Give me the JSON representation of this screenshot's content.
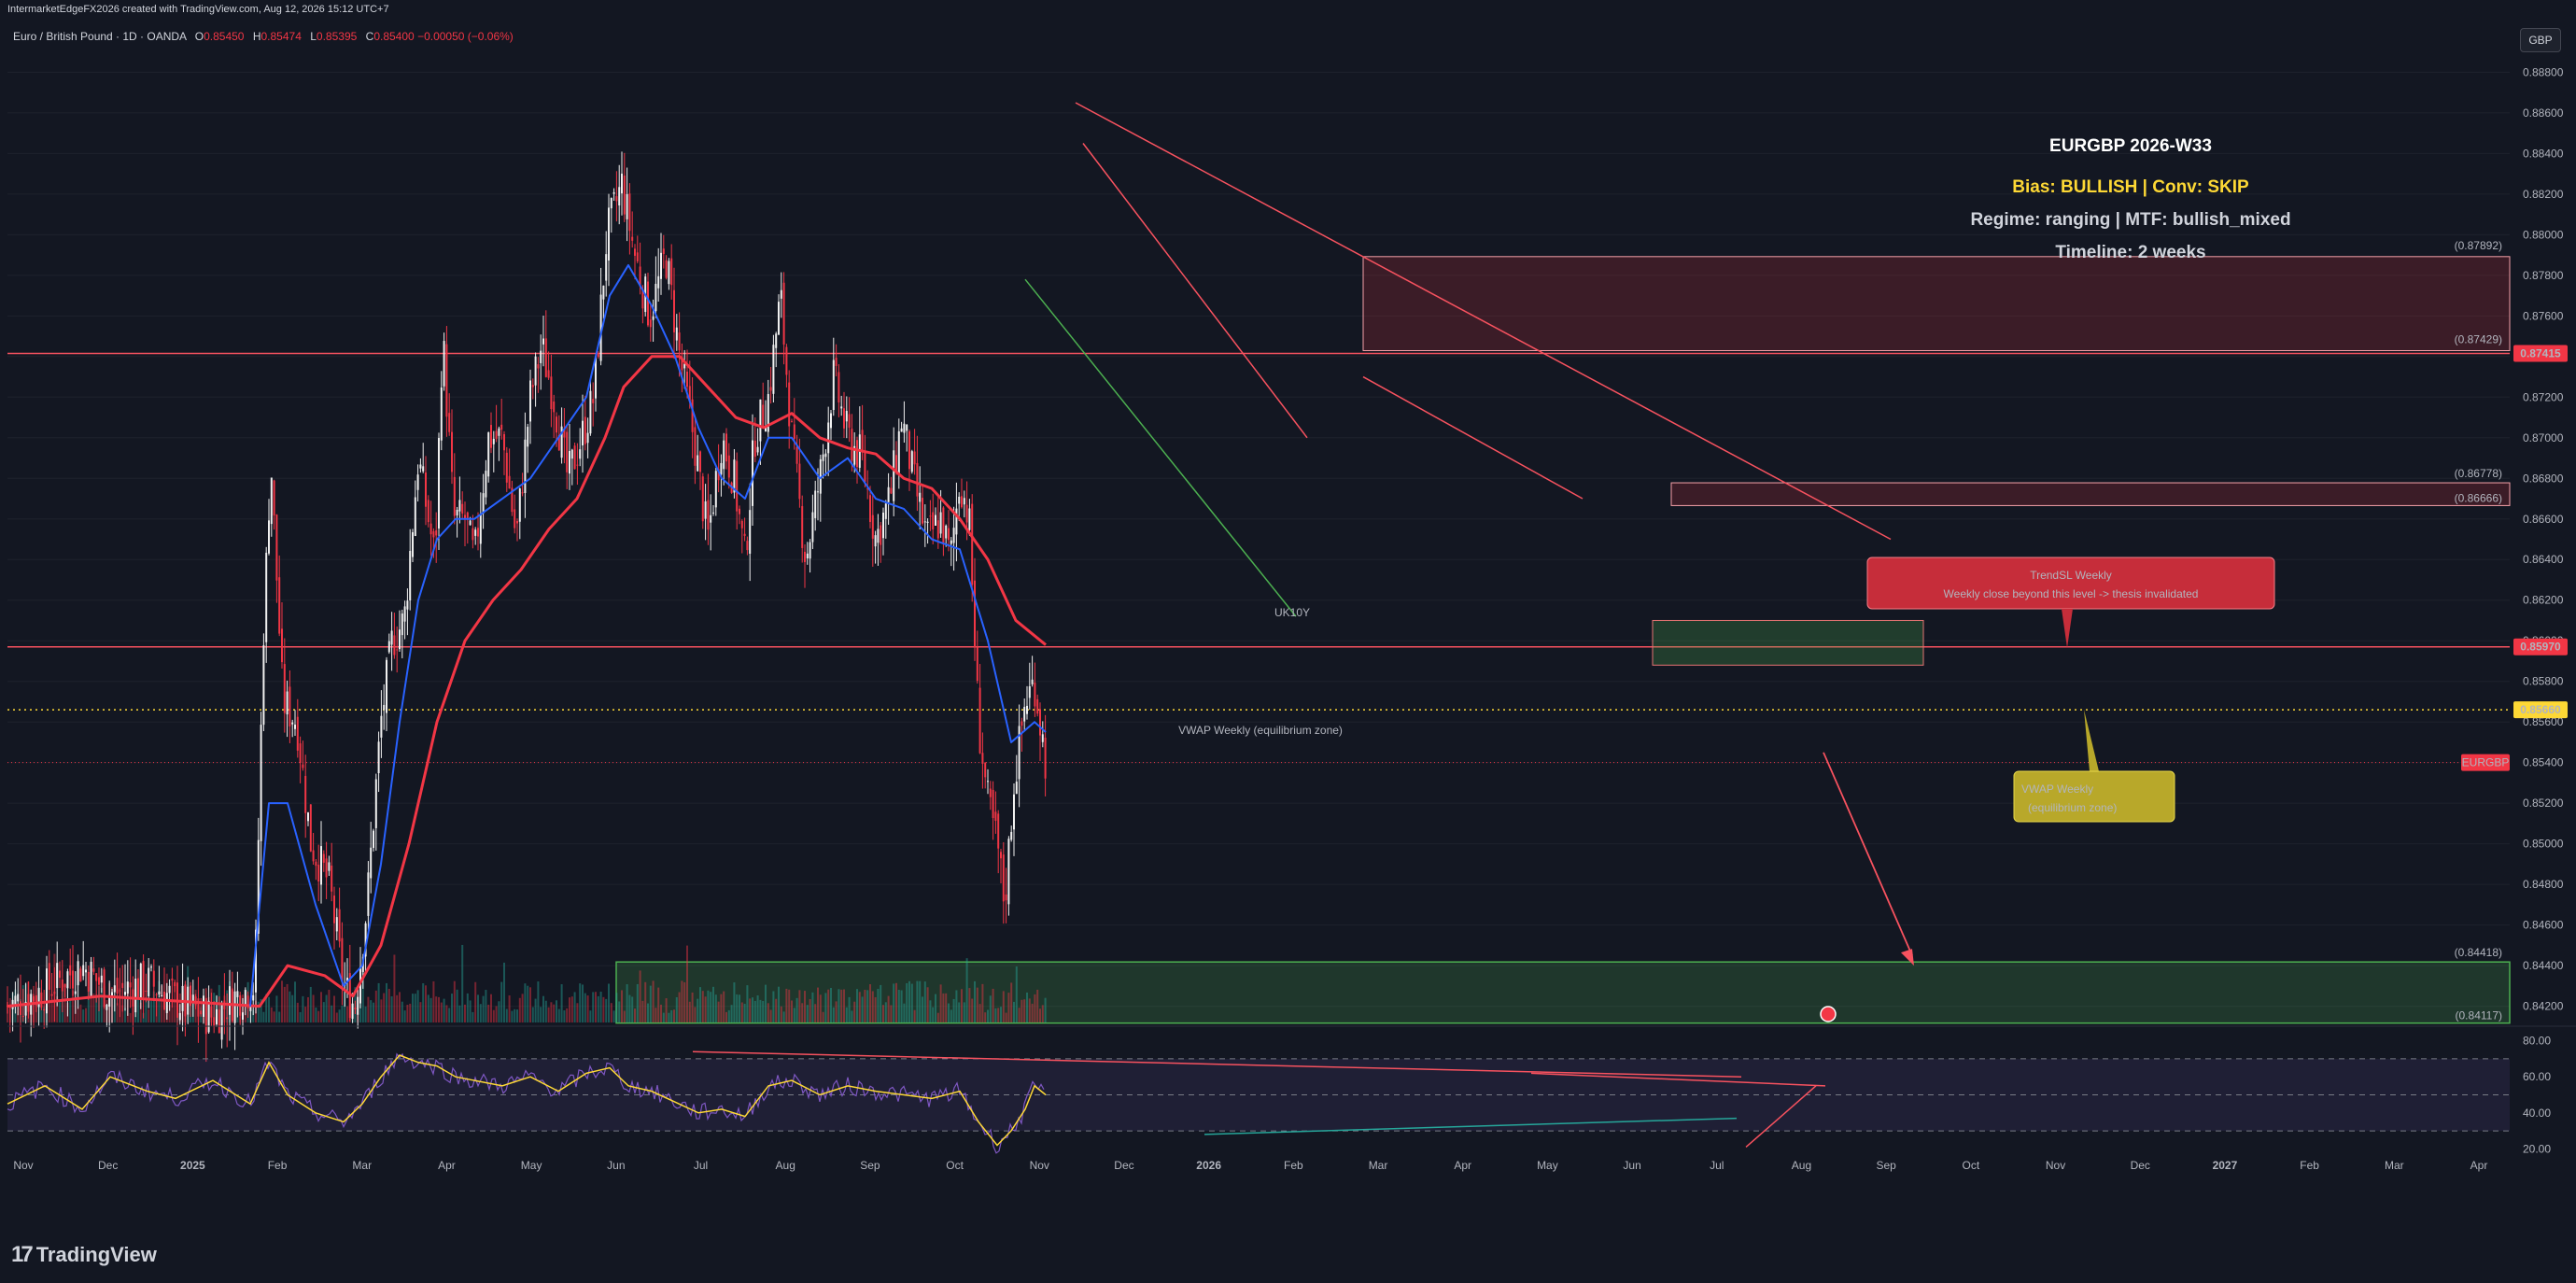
{
  "header": {
    "credit": "IntermarketEdgeFX2026 created with TradingView.com, Aug 12, 2026 15:12 UTC+7",
    "symbol": "Euro / British Pound · 1D · OANDA",
    "ohlc": [
      {
        "label": "O",
        "value": "0.85450"
      },
      {
        "label": "H",
        "value": "0.85474"
      },
      {
        "label": "L",
        "value": "0.85395"
      },
      {
        "label": "C",
        "value": "0.85400"
      }
    ],
    "change": "−0.00050 (−0.06%)",
    "currency": "GBP"
  },
  "footer": {
    "brand": "TradingView",
    "brand_mark": "17"
  },
  "info_box": {
    "title": "EURGBP 2026-W33",
    "bias": "Bias: BULLISH | Conv: SKIP",
    "regime": "Regime: ranging | MTF: bullish_mixed",
    "timeline": "Timeline: 2 weeks"
  },
  "annotations": {
    "trendsl_title": "TrendSL Weekly",
    "trendsl_text": "Weekly close beyond this level -> thesis invalidated",
    "vwap_label": "VWAP Weekly (equilibrium zone)",
    "vwap_box_line1": "VWAP Weekly",
    "vwap_box_line2": "(equilibrium zone)",
    "uk10y": "UK10Y"
  },
  "colors": {
    "background": "#131722",
    "up": "#f0f0f0",
    "down": "#f23645",
    "ema_fast": "#2962ff",
    "ema_slow": "#f23645",
    "resistance": "#f7525f",
    "support": "#4caf50",
    "vwap": "#fdd835",
    "rsi": "#7e57c2",
    "rsi_ma": "#fdd835"
  },
  "chart_data": {
    "type": "candlestick",
    "symbol": "EURGBP",
    "timeframe": "1D",
    "ylim": [
      0.8412,
      0.8888
    ],
    "y_ticks": [
      "0.88800",
      "0.88600",
      "0.88400",
      "0.88200",
      "0.88000",
      "0.87800",
      "0.87600",
      "0.87400",
      "0.87200",
      "0.87000",
      "0.86800",
      "0.86600",
      "0.86400",
      "0.86200",
      "0.86000",
      "0.85800",
      "0.85600",
      "0.85400",
      "0.85200",
      "0.85000",
      "0.84800",
      "0.84600",
      "0.84400",
      "0.84200"
    ],
    "x_labels": [
      "Nov",
      "Dec",
      "2025",
      "Feb",
      "Mar",
      "Apr",
      "May",
      "Jun",
      "Jul",
      "Aug",
      "Sep",
      "Oct",
      "Nov",
      "Dec",
      "2026",
      "Feb",
      "Mar",
      "Apr",
      "May",
      "Jun",
      "Jul",
      "Aug",
      "Sep",
      "Oct",
      "Nov",
      "Dec",
      "2027",
      "Feb",
      "Mar",
      "Apr"
    ],
    "price_path": [
      [
        0,
        0.842
      ],
      [
        40,
        0.8428
      ],
      [
        80,
        0.844
      ],
      [
        110,
        0.8426
      ],
      [
        150,
        0.8432
      ],
      [
        190,
        0.842
      ],
      [
        220,
        0.8415
      ],
      [
        245,
        0.8425
      ],
      [
        265,
        0.843
      ],
      [
        274,
        0.8602
      ],
      [
        282,
        0.869
      ],
      [
        295,
        0.857
      ],
      [
        310,
        0.856
      ],
      [
        325,
        0.85
      ],
      [
        345,
        0.848
      ],
      [
        360,
        0.843
      ],
      [
        372,
        0.842
      ],
      [
        385,
        0.847
      ],
      [
        400,
        0.856
      ],
      [
        412,
        0.86
      ],
      [
        425,
        0.861
      ],
      [
        440,
        0.869
      ],
      [
        458,
        0.864
      ],
      [
        466,
        0.8752
      ],
      [
        478,
        0.866
      ],
      [
        490,
        0.866
      ],
      [
        500,
        0.864
      ],
      [
        515,
        0.87
      ],
      [
        530,
        0.87
      ],
      [
        545,
        0.865
      ],
      [
        560,
        0.872
      ],
      [
        572,
        0.8745
      ],
      [
        585,
        0.872
      ],
      [
        600,
        0.868
      ],
      [
        615,
        0.87
      ],
      [
        628,
        0.872
      ],
      [
        642,
        0.88
      ],
      [
        658,
        0.8825
      ],
      [
        672,
        0.879
      ],
      [
        688,
        0.876
      ],
      [
        705,
        0.879
      ],
      [
        720,
        0.874
      ],
      [
        735,
        0.87
      ],
      [
        750,
        0.865
      ],
      [
        765,
        0.87
      ],
      [
        778,
        0.868
      ],
      [
        790,
        0.864
      ],
      [
        800,
        0.87
      ],
      [
        815,
        0.872
      ],
      [
        828,
        0.877
      ],
      [
        840,
        0.87
      ],
      [
        855,
        0.864
      ],
      [
        870,
        0.868
      ],
      [
        885,
        0.873
      ],
      [
        900,
        0.87
      ],
      [
        915,
        0.869
      ],
      [
        930,
        0.865
      ],
      [
        945,
        0.867
      ],
      [
        958,
        0.871
      ],
      [
        970,
        0.868
      ],
      [
        985,
        0.865
      ],
      [
        1000,
        0.866
      ],
      [
        1010,
        0.864
      ],
      [
        1020,
        0.868
      ],
      [
        1030,
        0.866
      ],
      [
        1040,
        0.856
      ],
      [
        1050,
        0.852
      ],
      [
        1060,
        0.85
      ],
      [
        1068,
        0.847
      ],
      [
        1078,
        0.853
      ],
      [
        1090,
        0.857
      ],
      [
        1100,
        0.858
      ],
      [
        1112,
        0.854
      ]
    ],
    "ema_fast_path": [
      [
        260,
        0.842
      ],
      [
        280,
        0.852
      ],
      [
        300,
        0.852
      ],
      [
        330,
        0.847
      ],
      [
        360,
        0.843
      ],
      [
        380,
        0.844
      ],
      [
        400,
        0.849
      ],
      [
        420,
        0.856
      ],
      [
        440,
        0.862
      ],
      [
        460,
        0.865
      ],
      [
        480,
        0.866
      ],
      [
        500,
        0.866
      ],
      [
        530,
        0.867
      ],
      [
        560,
        0.868
      ],
      [
        590,
        0.87
      ],
      [
        620,
        0.872
      ],
      [
        645,
        0.877
      ],
      [
        665,
        0.8785
      ],
      [
        690,
        0.8765
      ],
      [
        715,
        0.874
      ],
      [
        740,
        0.8705
      ],
      [
        765,
        0.868
      ],
      [
        790,
        0.867
      ],
      [
        815,
        0.87
      ],
      [
        840,
        0.87
      ],
      [
        870,
        0.868
      ],
      [
        900,
        0.869
      ],
      [
        930,
        0.867
      ],
      [
        960,
        0.8665
      ],
      [
        990,
        0.865
      ],
      [
        1020,
        0.8645
      ],
      [
        1050,
        0.86
      ],
      [
        1075,
        0.855
      ],
      [
        1100,
        0.856
      ],
      [
        1112,
        0.8555
      ]
    ],
    "ema_slow_path": [
      [
        0,
        0.842
      ],
      [
        100,
        0.8425
      ],
      [
        200,
        0.8422
      ],
      [
        270,
        0.842
      ],
      [
        300,
        0.844
      ],
      [
        340,
        0.8435
      ],
      [
        370,
        0.8425
      ],
      [
        400,
        0.845
      ],
      [
        430,
        0.85
      ],
      [
        460,
        0.856
      ],
      [
        490,
        0.86
      ],
      [
        520,
        0.862
      ],
      [
        550,
        0.8635
      ],
      [
        580,
        0.8655
      ],
      [
        610,
        0.867
      ],
      [
        640,
        0.87
      ],
      [
        660,
        0.8725
      ],
      [
        690,
        0.874
      ],
      [
        720,
        0.874
      ],
      [
        750,
        0.8725
      ],
      [
        780,
        0.871
      ],
      [
        810,
        0.8705
      ],
      [
        840,
        0.8712
      ],
      [
        870,
        0.87
      ],
      [
        900,
        0.8695
      ],
      [
        930,
        0.8692
      ],
      [
        960,
        0.868
      ],
      [
        990,
        0.8675
      ],
      [
        1020,
        0.866
      ],
      [
        1050,
        0.864
      ],
      [
        1080,
        0.861
      ],
      [
        1112,
        0.8598
      ]
    ],
    "levels": {
      "resistance_zone": [
        "0.87892",
        "0.87429"
      ],
      "resistance_line": "0.87415",
      "mid_zone": [
        "0.86778",
        "0.86666"
      ],
      "trendsl": "0.85970",
      "vwap": "0.85660",
      "current": "0.85400",
      "support_zone": [
        "0.84418",
        "0.84117"
      ]
    },
    "price_tags": {
      "resistance": "0.87415",
      "trendsl": "0.85970",
      "vwap": "0.85660",
      "symbol": "EURGBP"
    },
    "rsi": {
      "ylim": [
        15,
        85
      ],
      "ticks": [
        "80.00",
        "60.00",
        "40.00",
        "20.00"
      ],
      "path": [
        [
          0,
          45
        ],
        [
          40,
          55
        ],
        [
          80,
          42
        ],
        [
          110,
          60
        ],
        [
          150,
          52
        ],
        [
          180,
          48
        ],
        [
          220,
          58
        ],
        [
          260,
          45
        ],
        [
          280,
          68
        ],
        [
          300,
          50
        ],
        [
          330,
          40
        ],
        [
          360,
          35
        ],
        [
          380,
          45
        ],
        [
          400,
          60
        ],
        [
          420,
          72
        ],
        [
          440,
          68
        ],
        [
          460,
          66
        ],
        [
          480,
          60
        ],
        [
          500,
          58
        ],
        [
          530,
          55
        ],
        [
          560,
          60
        ],
        [
          590,
          52
        ],
        [
          620,
          62
        ],
        [
          645,
          65
        ],
        [
          665,
          55
        ],
        [
          690,
          52
        ],
        [
          715,
          46
        ],
        [
          740,
          40
        ],
        [
          765,
          42
        ],
        [
          790,
          38
        ],
        [
          815,
          55
        ],
        [
          840,
          58
        ],
        [
          870,
          50
        ],
        [
          900,
          55
        ],
        [
          930,
          52
        ],
        [
          960,
          50
        ],
        [
          990,
          48
        ],
        [
          1020,
          52
        ],
        [
          1040,
          35
        ],
        [
          1060,
          22
        ],
        [
          1075,
          30
        ],
        [
          1090,
          42
        ],
        [
          1100,
          55
        ],
        [
          1112,
          50
        ]
      ]
    }
  }
}
